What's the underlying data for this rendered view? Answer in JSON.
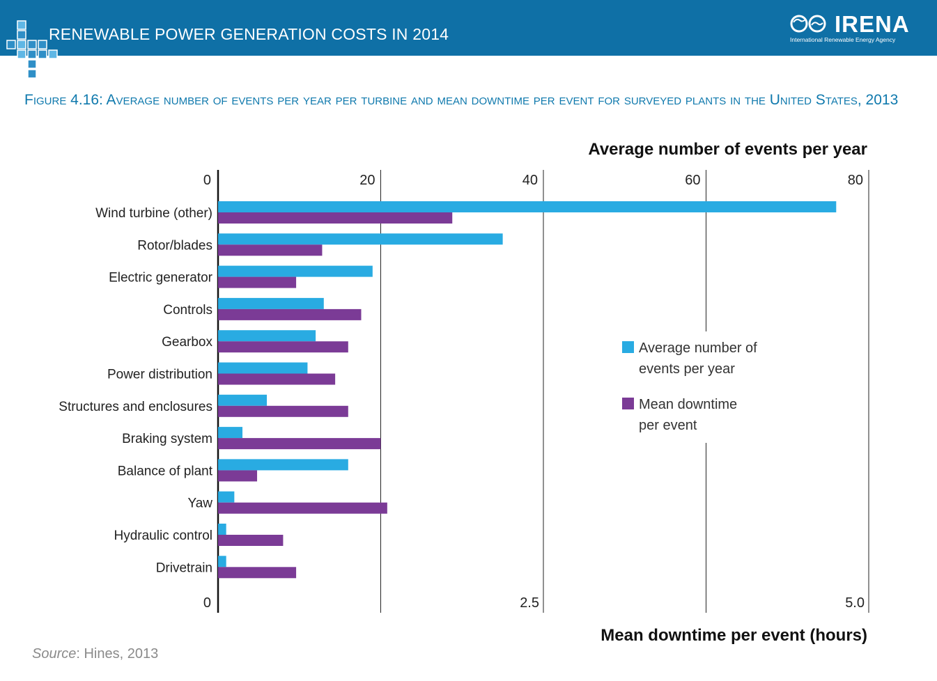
{
  "banner": {
    "title": "RENEWABLE POWER GENERATION COSTS IN 2014",
    "logo_text": "IRENA",
    "logo_subtitle": "International Renewable Energy Agency",
    "color": "#0f70a6"
  },
  "figure_title": "Figure 4.16: Average number of events per year per turbine and mean downtime per event for surveyed plants in the United States, 2013",
  "source": {
    "label": "Source",
    "text": ": Hines, 2013"
  },
  "chart_data": {
    "type": "bar",
    "orientation": "horizontal",
    "categories": [
      "Wind turbine (other)",
      "Rotor/blades",
      "Electric generator",
      "Controls",
      "Gearbox",
      "Power distribution",
      "Structures and enclosures",
      "Braking system",
      "Balance of plant",
      "Yaw",
      "Hydraulic control",
      "Drivetrain"
    ],
    "series": [
      {
        "name": "Average number of events per year",
        "axis": "top",
        "color": "#29abe2",
        "values": [
          76,
          35,
          19,
          13,
          12,
          11,
          6,
          3,
          16,
          2,
          1,
          1
        ]
      },
      {
        "name": "Mean downtime per event",
        "axis": "bottom",
        "color": "#7b3b96",
        "values": [
          1.8,
          0.8,
          0.6,
          1.1,
          1.0,
          0.9,
          1.0,
          1.25,
          0.3,
          1.3,
          0.5,
          0.6
        ]
      }
    ],
    "top_axis": {
      "label": "Average number of events per year",
      "range": [
        0,
        80
      ],
      "ticks": [
        "0",
        "20",
        "40",
        "60",
        "80"
      ]
    },
    "bottom_axis": {
      "label": "Mean downtime per event (hours)",
      "range": [
        0,
        5.0
      ],
      "ticks": [
        "0",
        "2.5",
        "5.0"
      ]
    },
    "legend": {
      "placement": "middle-right",
      "entries": [
        {
          "lines": [
            "Average number of",
            "events per year"
          ],
          "color": "#29abe2"
        },
        {
          "lines": [
            "Mean downtime",
            "per event"
          ],
          "color": "#7b3b96"
        }
      ]
    },
    "grid": true
  }
}
